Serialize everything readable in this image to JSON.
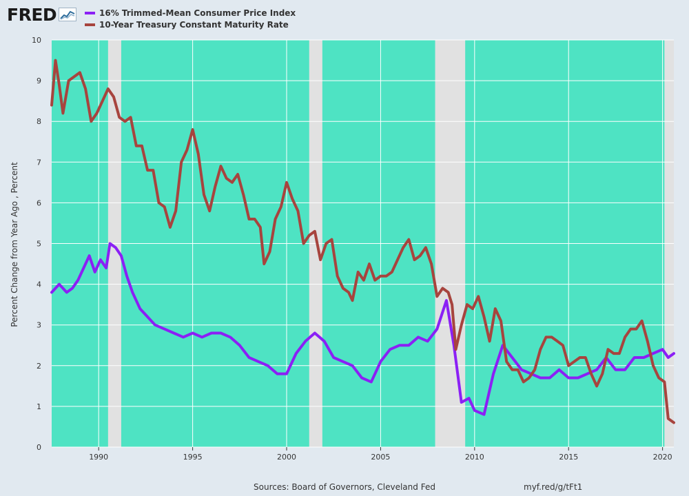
{
  "header": {
    "logo_text": "FRED",
    "logo_icon": "chart-line-icon"
  },
  "footer": {
    "source": "Sources: Board of Governors, Cleveland Fed",
    "link": "myf.red/g/tFt1"
  },
  "colors": {
    "background": "#e1e9f0",
    "plot_fill": "#4ee3c3",
    "recession": "#e1e1e1",
    "series_cpi": "#8b20f5",
    "series_treasury": "#a7443e"
  },
  "chart_data": {
    "type": "line",
    "ylabel": "Percent Change from Year Ago , Percent",
    "xlabel": "",
    "ylim": [
      0,
      10
    ],
    "xlim": [
      1987.5,
      2020.6
    ],
    "y_ticks": [
      "0",
      "1",
      "2",
      "3",
      "4",
      "5",
      "6",
      "7",
      "8",
      "9",
      "10"
    ],
    "x_ticks": [
      "1990",
      "1995",
      "2000",
      "2005",
      "2010",
      "2015",
      "2020"
    ],
    "grid": true,
    "legend_position": "top-left",
    "recessions": [
      [
        1990.5,
        1991.2
      ],
      [
        2001.2,
        2001.9
      ],
      [
        2007.9,
        2009.5
      ],
      [
        2020.1,
        2020.6
      ]
    ],
    "series": [
      {
        "name": "16% Trimmed-Mean Consumer Price Index",
        "x": [
          1987.5,
          1987.9,
          1988.3,
          1988.6,
          1988.9,
          1989.2,
          1989.5,
          1989.8,
          1990.1,
          1990.4,
          1990.6,
          1990.9,
          1991.2,
          1991.5,
          1991.8,
          1992.2,
          1992.6,
          1993.0,
          1993.5,
          1994.0,
          1994.5,
          1995.0,
          1995.5,
          1996.0,
          1996.5,
          1997.0,
          1997.5,
          1998.0,
          1998.5,
          1999.0,
          1999.5,
          2000.0,
          2000.5,
          2001.0,
          2001.5,
          2002.0,
          2002.5,
          2003.0,
          2003.5,
          2004.0,
          2004.5,
          2005.0,
          2005.5,
          2006.0,
          2006.5,
          2007.0,
          2007.5,
          2008.0,
          2008.5,
          2008.9,
          2009.3,
          2009.7,
          2010.0,
          2010.5,
          2011.0,
          2011.5,
          2012.0,
          2012.5,
          2013.0,
          2013.5,
          2014.0,
          2014.5,
          2015.0,
          2015.5,
          2016.0,
          2016.5,
          2017.0,
          2017.5,
          2018.0,
          2018.5,
          2019.0,
          2019.5,
          2020.0,
          2020.3,
          2020.6
        ],
        "values": [
          3.8,
          4.0,
          3.8,
          3.9,
          4.1,
          4.4,
          4.7,
          4.3,
          4.6,
          4.4,
          5.0,
          4.9,
          4.7,
          4.2,
          3.8,
          3.4,
          3.2,
          3.0,
          2.9,
          2.8,
          2.7,
          2.8,
          2.7,
          2.8,
          2.8,
          2.7,
          2.5,
          2.2,
          2.1,
          2.0,
          1.8,
          1.8,
          2.3,
          2.6,
          2.8,
          2.6,
          2.2,
          2.1,
          2.0,
          1.7,
          1.6,
          2.1,
          2.4,
          2.5,
          2.5,
          2.7,
          2.6,
          2.9,
          3.6,
          2.5,
          1.1,
          1.2,
          0.9,
          0.8,
          1.8,
          2.5,
          2.2,
          1.9,
          1.8,
          1.7,
          1.7,
          1.9,
          1.7,
          1.7,
          1.8,
          1.9,
          2.2,
          1.9,
          1.9,
          2.2,
          2.2,
          2.3,
          2.4,
          2.2,
          2.3
        ]
      },
      {
        "name": "10-Year Treasury Constant Maturity Rate",
        "x": [
          1987.5,
          1987.7,
          1987.9,
          1988.1,
          1988.4,
          1988.7,
          1989.0,
          1989.3,
          1989.6,
          1989.9,
          1990.2,
          1990.5,
          1990.8,
          1991.1,
          1991.4,
          1991.7,
          1992.0,
          1992.3,
          1992.6,
          1992.9,
          1993.2,
          1993.5,
          1993.8,
          1994.1,
          1994.4,
          1994.7,
          1995.0,
          1995.3,
          1995.6,
          1995.9,
          1996.2,
          1996.5,
          1996.8,
          1997.1,
          1997.4,
          1997.7,
          1998.0,
          1998.3,
          1998.6,
          1998.8,
          1999.1,
          1999.4,
          1999.7,
          2000.0,
          2000.3,
          2000.6,
          2000.9,
          2001.2,
          2001.5,
          2001.8,
          2002.1,
          2002.4,
          2002.7,
          2003.0,
          2003.3,
          2003.5,
          2003.8,
          2004.1,
          2004.4,
          2004.7,
          2005.0,
          2005.3,
          2005.6,
          2005.9,
          2006.2,
          2006.5,
          2006.8,
          2007.1,
          2007.4,
          2007.7,
          2008.0,
          2008.3,
          2008.6,
          2008.8,
          2009.0,
          2009.3,
          2009.6,
          2009.9,
          2010.2,
          2010.5,
          2010.8,
          2011.1,
          2011.4,
          2011.7,
          2012.0,
          2012.3,
          2012.6,
          2012.9,
          2013.2,
          2013.5,
          2013.8,
          2014.1,
          2014.4,
          2014.7,
          2015.0,
          2015.3,
          2015.6,
          2015.9,
          2016.2,
          2016.5,
          2016.8,
          2017.1,
          2017.4,
          2017.7,
          2018.0,
          2018.3,
          2018.6,
          2018.9,
          2019.2,
          2019.5,
          2019.8,
          2020.1,
          2020.3,
          2020.6
        ],
        "values": [
          8.4,
          9.5,
          8.9,
          8.2,
          9.0,
          9.1,
          9.2,
          8.8,
          8.0,
          8.2,
          8.5,
          8.8,
          8.6,
          8.1,
          8.0,
          8.1,
          7.4,
          7.4,
          6.8,
          6.8,
          6.0,
          5.9,
          5.4,
          5.8,
          7.0,
          7.3,
          7.8,
          7.2,
          6.2,
          5.8,
          6.4,
          6.9,
          6.6,
          6.5,
          6.7,
          6.2,
          5.6,
          5.6,
          5.4,
          4.5,
          4.8,
          5.6,
          5.9,
          6.5,
          6.1,
          5.8,
          5.0,
          5.2,
          5.3,
          4.6,
          5.0,
          5.1,
          4.2,
          3.9,
          3.8,
          3.6,
          4.3,
          4.1,
          4.5,
          4.1,
          4.2,
          4.2,
          4.3,
          4.6,
          4.9,
          5.1,
          4.6,
          4.7,
          4.9,
          4.5,
          3.7,
          3.9,
          3.8,
          3.5,
          2.4,
          3.0,
          3.5,
          3.4,
          3.7,
          3.2,
          2.6,
          3.4,
          3.1,
          2.1,
          1.9,
          1.9,
          1.6,
          1.7,
          1.9,
          2.4,
          2.7,
          2.7,
          2.6,
          2.5,
          2.0,
          2.1,
          2.2,
          2.2,
          1.8,
          1.5,
          1.8,
          2.4,
          2.3,
          2.3,
          2.7,
          2.9,
          2.9,
          3.1,
          2.6,
          2.0,
          1.7,
          1.6,
          0.7,
          0.6
        ]
      }
    ]
  }
}
